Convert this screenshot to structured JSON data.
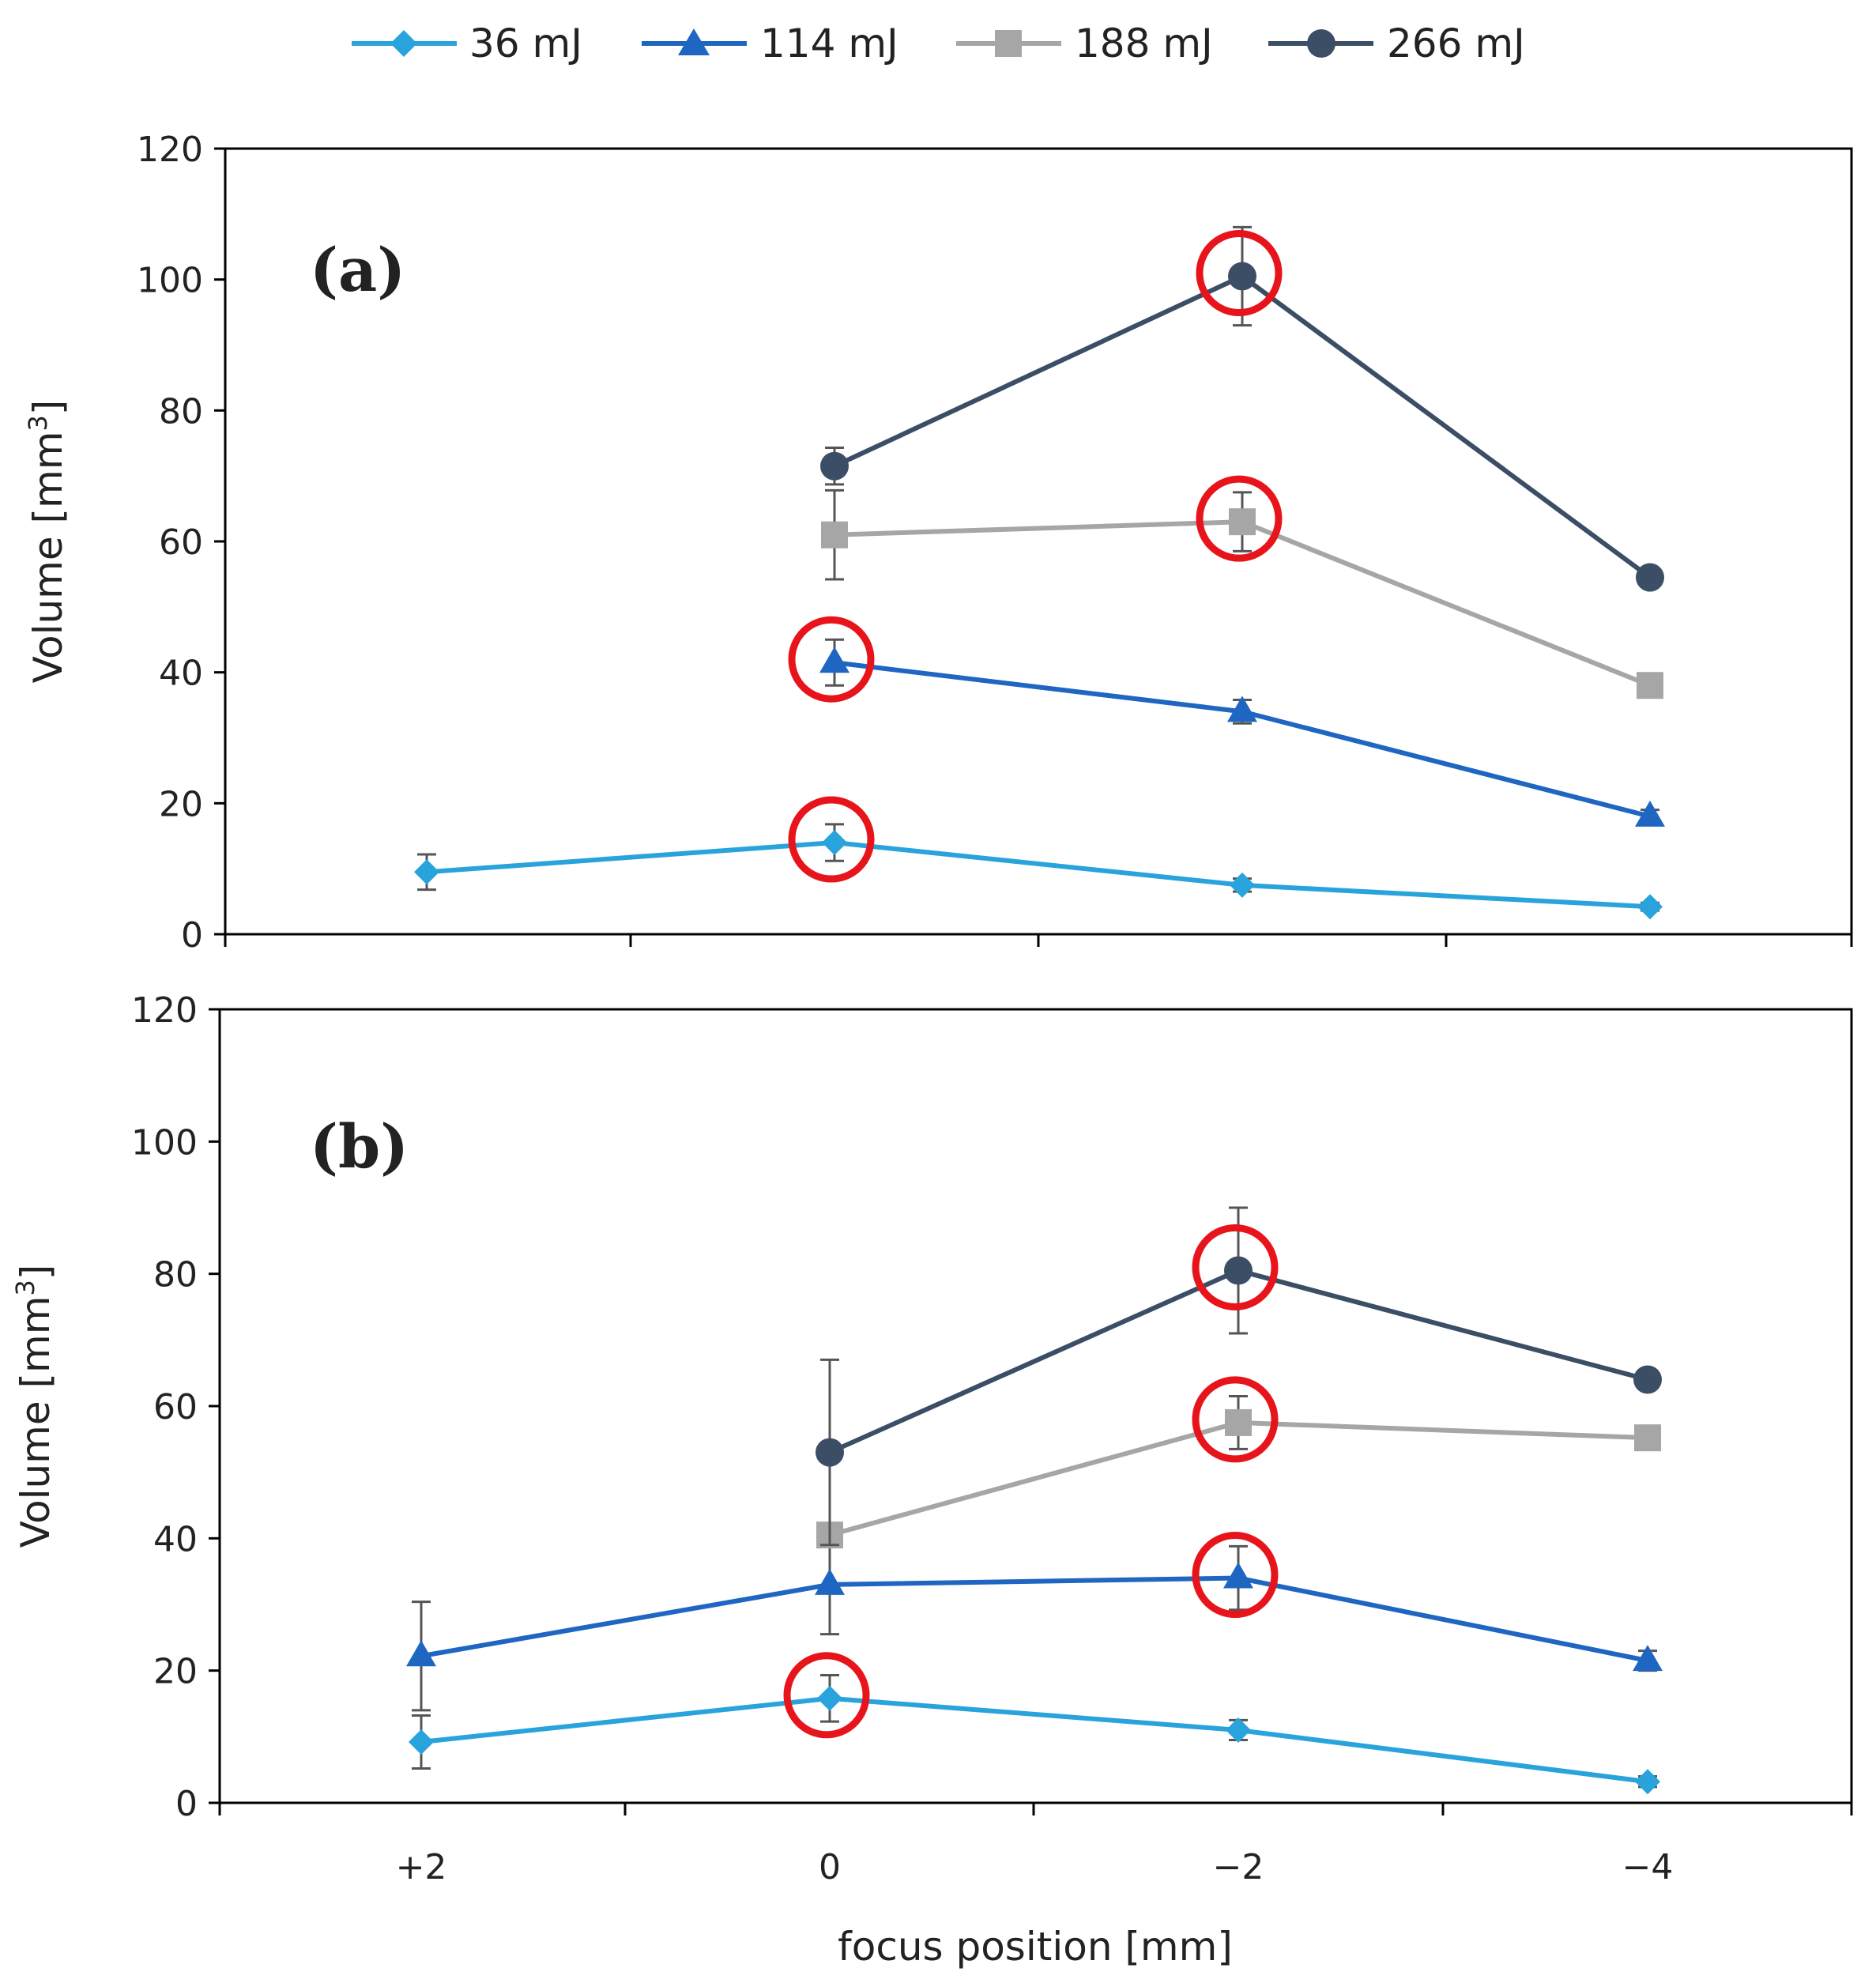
{
  "legend": {
    "entries": [
      {
        "label": "36 mJ",
        "color": "#29a3dc",
        "marker": "diamond"
      },
      {
        "label": "114 mJ",
        "color": "#1f66c2",
        "marker": "triangle"
      },
      {
        "label": "188 mJ",
        "color": "#a6a6a6",
        "marker": "square"
      },
      {
        "label": "266 mJ",
        "color": "#3b4e66",
        "marker": "circle"
      }
    ]
  },
  "x_tick_labels": [
    "+2",
    "0",
    "−2",
    "−4"
  ],
  "xlabel": "focus position [mm]",
  "highlight_color": "#e8141b",
  "chart_data": [
    {
      "type": "line",
      "panel_label": "(a)",
      "title": "",
      "xlabel": "focus position [mm]",
      "ylabel_main": "Volume [mm",
      "ylabel_sup": "3",
      "ylabel_end": "]",
      "categories": [
        "+2",
        "0",
        "−2",
        "−4"
      ],
      "ylim": [
        0,
        120
      ],
      "yticks": [
        0,
        20,
        40,
        60,
        80,
        100,
        120
      ],
      "series": [
        {
          "name": "36 mJ",
          "values": [
            9.5,
            14,
            7.5,
            4.2
          ],
          "errors": [
            2.7,
            2.8,
            1.0,
            0.6
          ]
        },
        {
          "name": "114 mJ",
          "values": [
            null,
            41.5,
            34,
            18
          ],
          "errors": [
            null,
            3.5,
            1.8,
            1.0
          ]
        },
        {
          "name": "188 mJ",
          "values": [
            null,
            61,
            63,
            38
          ],
          "errors": [
            null,
            6.8,
            4.5,
            1.0
          ]
        },
        {
          "name": "266 mJ",
          "values": [
            null,
            71.5,
            100.5,
            54.5
          ],
          "errors": [
            null,
            2.8,
            7.5,
            1.2
          ]
        }
      ],
      "highlighted": [
        {
          "series": "266 mJ",
          "category": "−2"
        },
        {
          "series": "188 mJ",
          "category": "−2"
        },
        {
          "series": "114 mJ",
          "category": "0"
        },
        {
          "series": "36 mJ",
          "category": "0"
        }
      ]
    },
    {
      "type": "line",
      "panel_label": "(b)",
      "title": "",
      "xlabel": "focus position [mm]",
      "ylabel_main": "Volume [mm",
      "ylabel_sup": "3",
      "ylabel_end": "]",
      "categories": [
        "+2",
        "0",
        "−2",
        "−4"
      ],
      "ylim": [
        0,
        120
      ],
      "yticks": [
        0,
        20,
        40,
        60,
        80,
        100,
        120
      ],
      "series": [
        {
          "name": "36 mJ",
          "values": [
            9.2,
            15.8,
            11,
            3.2
          ],
          "errors": [
            4,
            3.5,
            1.5,
            0.8
          ]
        },
        {
          "name": "114 mJ",
          "values": [
            22.2,
            33,
            34,
            21.5
          ],
          "errors": [
            8.2,
            7.5,
            4.8,
            1.5
          ]
        },
        {
          "name": "188 mJ",
          "values": [
            null,
            40.5,
            57.5,
            55.2
          ],
          "errors": [
            null,
            1.0,
            4.0,
            1.0
          ]
        },
        {
          "name": "266 mJ",
          "values": [
            null,
            53,
            80.5,
            64
          ],
          "errors": [
            null,
            14,
            9.5,
            1.0
          ]
        }
      ],
      "highlighted": [
        {
          "series": "266 mJ",
          "category": "−2"
        },
        {
          "series": "188 mJ",
          "category": "−2"
        },
        {
          "series": "114 mJ",
          "category": "−2"
        },
        {
          "series": "36 mJ",
          "category": "0"
        }
      ]
    }
  ]
}
